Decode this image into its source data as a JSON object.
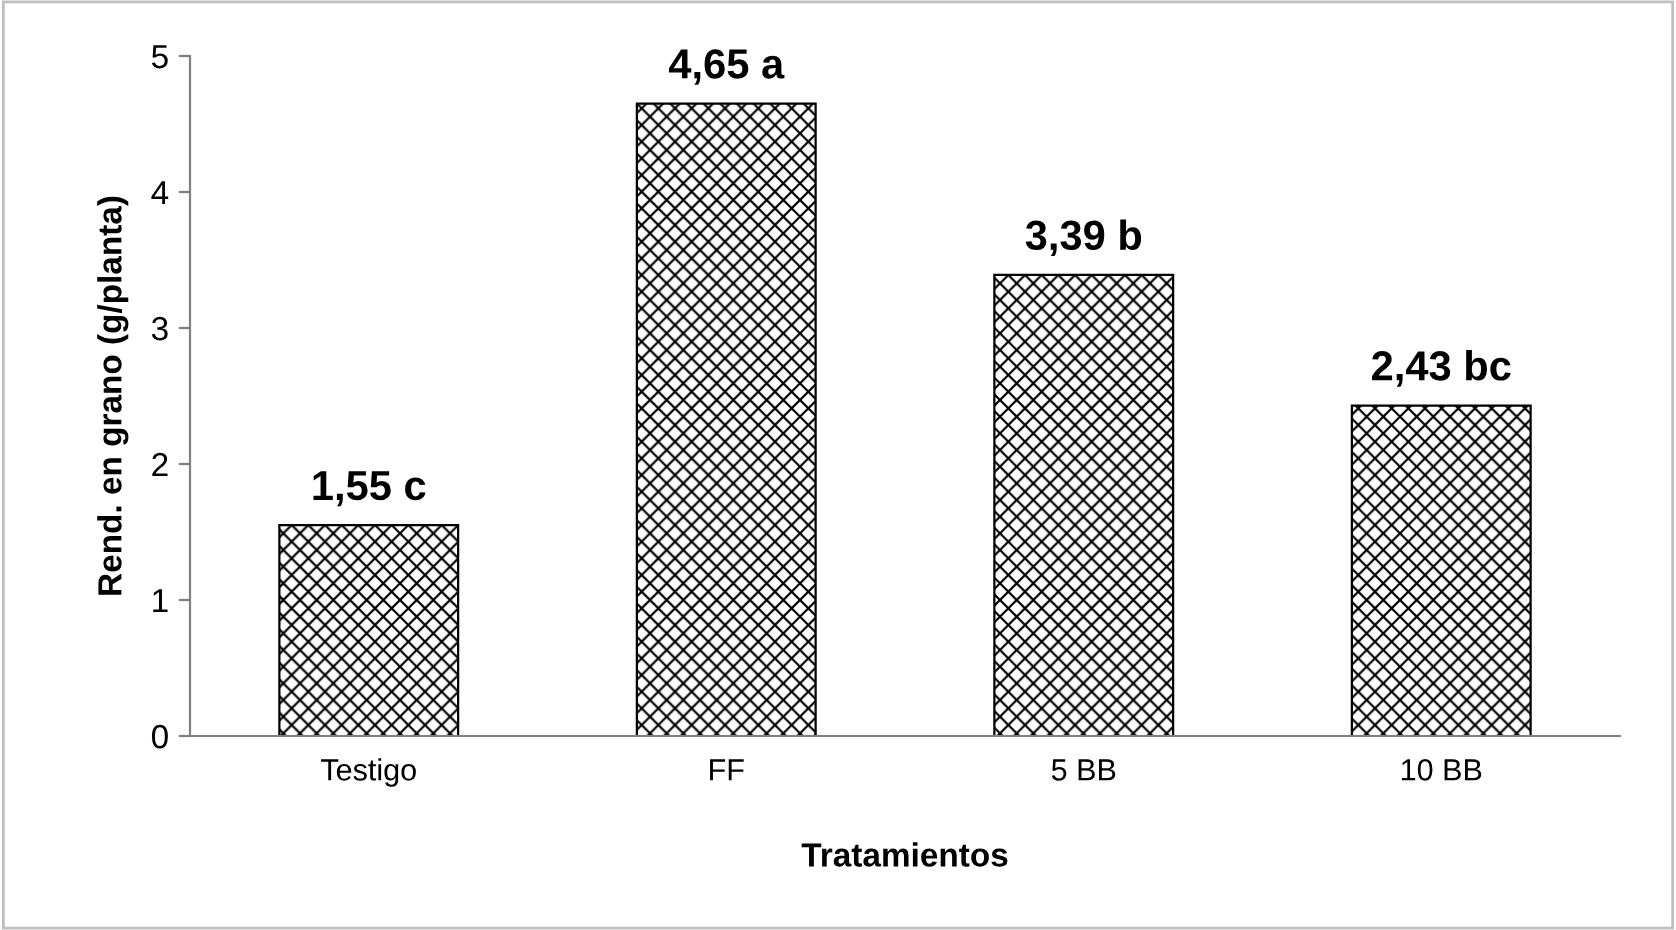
{
  "chart_data": {
    "type": "bar",
    "xlabel": "Tratamientos",
    "ylabel": "Rend. en grano (g/planta)",
    "categories": [
      "Testigo",
      "FF",
      "5 BB",
      "10 BB"
    ],
    "values": [
      1.55,
      4.65,
      3.39,
      2.43
    ],
    "value_labels": [
      "1,55 c",
      "4,65 a",
      "3,39 b",
      "2,43 bc"
    ],
    "color": "#000000",
    "ylim": [
      0,
      5
    ],
    "yticks": [
      0,
      1,
      2,
      3,
      4,
      5
    ],
    "grid": false
  }
}
